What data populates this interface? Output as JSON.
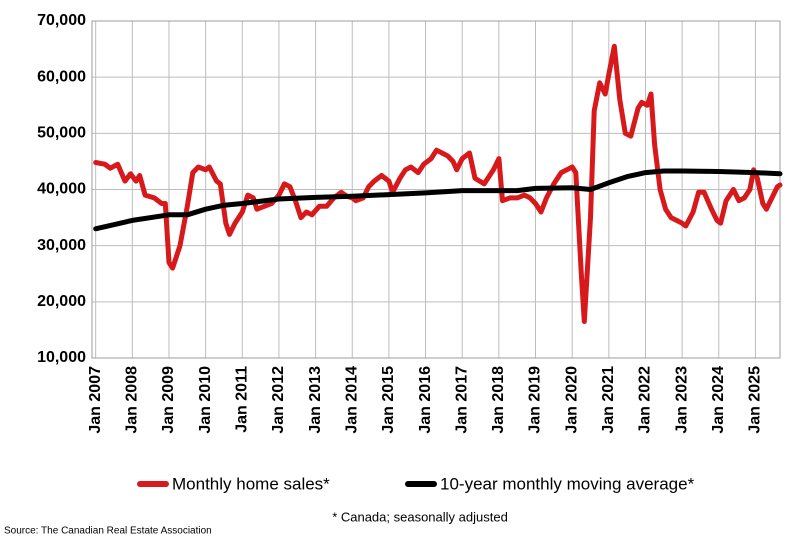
{
  "chart_data": {
    "type": "line",
    "source": "Source: The Canadian Real Estate Association",
    "note": "* Canada; seasonally adjusted",
    "xlim": [
      2006.9,
      2025.67
    ],
    "ylim": [
      10000,
      70000
    ],
    "yticks": [
      {
        "value": 10000,
        "label": "10,000"
      },
      {
        "value": 20000,
        "label": "20,000"
      },
      {
        "value": 30000,
        "label": "30,000"
      },
      {
        "value": 40000,
        "label": "40,000"
      },
      {
        "value": 50000,
        "label": "50,000"
      },
      {
        "value": 60000,
        "label": "60,000"
      },
      {
        "value": 70000,
        "label": "70,000"
      }
    ],
    "xticks": [
      {
        "value": 2007,
        "label": "Jan 2007"
      },
      {
        "value": 2008,
        "label": "Jan 2008"
      },
      {
        "value": 2009,
        "label": "Jan 2009"
      },
      {
        "value": 2010,
        "label": "Jan 2010"
      },
      {
        "value": 2011,
        "label": "Jan 2011"
      },
      {
        "value": 2012,
        "label": "Jan 2012"
      },
      {
        "value": 2013,
        "label": "Jan 2013"
      },
      {
        "value": 2014,
        "label": "Jan 2014"
      },
      {
        "value": 2015,
        "label": "Jan 2015"
      },
      {
        "value": 2016,
        "label": "Jan 2016"
      },
      {
        "value": 2017,
        "label": "Jan 2017"
      },
      {
        "value": 2018,
        "label": "Jan 2018"
      },
      {
        "value": 2019,
        "label": "Jan 2019"
      },
      {
        "value": 2020,
        "label": "Jan 2020"
      },
      {
        "value": 2021,
        "label": "Jan 2021"
      },
      {
        "value": 2022,
        "label": "Jan 2022"
      },
      {
        "value": 2023,
        "label": "Jan 2023"
      },
      {
        "value": 2024,
        "label": "Jan 2024"
      },
      {
        "value": 2025,
        "label": "Jan 2025"
      }
    ],
    "grid": true,
    "series": [
      {
        "name": "Monthly home sales*",
        "color": "#d7191c",
        "x": [
          2007.0,
          2007.25,
          2007.4,
          2007.6,
          2007.8,
          2007.95,
          2008.1,
          2008.2,
          2008.35,
          2008.6,
          2008.8,
          2008.9,
          2009.0,
          2009.1,
          2009.3,
          2009.5,
          2009.65,
          2009.8,
          2010.0,
          2010.1,
          2010.3,
          2010.4,
          2010.55,
          2010.65,
          2010.8,
          2011.0,
          2011.15,
          2011.3,
          2011.4,
          2011.6,
          2011.8,
          2012.0,
          2012.15,
          2012.3,
          2012.45,
          2012.6,
          2012.75,
          2012.9,
          2013.1,
          2013.3,
          2013.5,
          2013.7,
          2013.85,
          2014.0,
          2014.1,
          2014.3,
          2014.45,
          2014.6,
          2014.8,
          2015.0,
          2015.1,
          2015.3,
          2015.45,
          2015.6,
          2015.8,
          2015.95,
          2016.15,
          2016.3,
          2016.45,
          2016.6,
          2016.75,
          2016.85,
          2017.0,
          2017.2,
          2017.35,
          2017.6,
          2017.85,
          2018.0,
          2018.1,
          2018.3,
          2018.5,
          2018.7,
          2018.85,
          2019.0,
          2019.15,
          2019.3,
          2019.5,
          2019.7,
          2019.85,
          2020.0,
          2020.1,
          2020.25,
          2020.33,
          2020.5,
          2020.6,
          2020.75,
          2020.9,
          2021.0,
          2021.15,
          2021.3,
          2021.45,
          2021.6,
          2021.8,
          2021.9,
          2022.05,
          2022.15,
          2022.25,
          2022.4,
          2022.55,
          2022.7,
          2022.85,
          2023.0,
          2023.1,
          2023.3,
          2023.45,
          2023.6,
          2023.8,
          2023.95,
          2024.05,
          2024.2,
          2024.4,
          2024.55,
          2024.7,
          2024.85,
          2024.95,
          2025.05,
          2025.2,
          2025.3,
          2025.45,
          2025.6,
          2025.67
        ],
        "values": [
          44800,
          44500,
          43800,
          44500,
          41500,
          42800,
          41500,
          42500,
          39000,
          38500,
          37500,
          37500,
          27000,
          26000,
          30000,
          37000,
          43000,
          44000,
          43500,
          44000,
          41500,
          41000,
          34000,
          32000,
          34000,
          36000,
          39000,
          38500,
          36500,
          37000,
          37500,
          39000,
          41000,
          40500,
          38000,
          35000,
          36000,
          35500,
          37000,
          37000,
          38500,
          39500,
          38800,
          38500,
          38000,
          38500,
          40500,
          41500,
          42500,
          41500,
          39500,
          42000,
          43500,
          44000,
          43000,
          44500,
          45500,
          47000,
          46500,
          46000,
          45000,
          43500,
          45500,
          46500,
          42000,
          41000,
          43500,
          45500,
          38000,
          38500,
          38500,
          39000,
          38500,
          37500,
          36000,
          38500,
          41000,
          43000,
          43500,
          44000,
          43000,
          25000,
          16500,
          35000,
          54000,
          59000,
          57000,
          60500,
          65500,
          56000,
          50000,
          49500,
          54500,
          55500,
          55000,
          57000,
          48000,
          40000,
          36500,
          35000,
          34500,
          34000,
          33500,
          36000,
          39500,
          39500,
          36500,
          34500,
          34000,
          38000,
          40000,
          38000,
          38500,
          40000,
          43500,
          42000,
          37500,
          36500,
          38500,
          40500,
          40800
        ]
      },
      {
        "name": "10-year monthly moving average*",
        "color": "#000000",
        "x": [
          2007.0,
          2008.0,
          2009.0,
          2009.5,
          2010.0,
          2010.5,
          2011.0,
          2012.0,
          2013.0,
          2014.0,
          2015.0,
          2016.0,
          2017.0,
          2018.0,
          2018.5,
          2019.0,
          2020.0,
          2020.5,
          2021.0,
          2021.5,
          2022.0,
          2022.5,
          2023.0,
          2024.0,
          2025.0,
          2025.67
        ],
        "values": [
          33000,
          34500,
          35500,
          35500,
          36500,
          37200,
          37500,
          38300,
          38600,
          38800,
          39100,
          39400,
          39800,
          39800,
          39800,
          40200,
          40300,
          40000,
          41200,
          42300,
          43000,
          43300,
          43300,
          43200,
          43000,
          42800
        ]
      }
    ]
  }
}
